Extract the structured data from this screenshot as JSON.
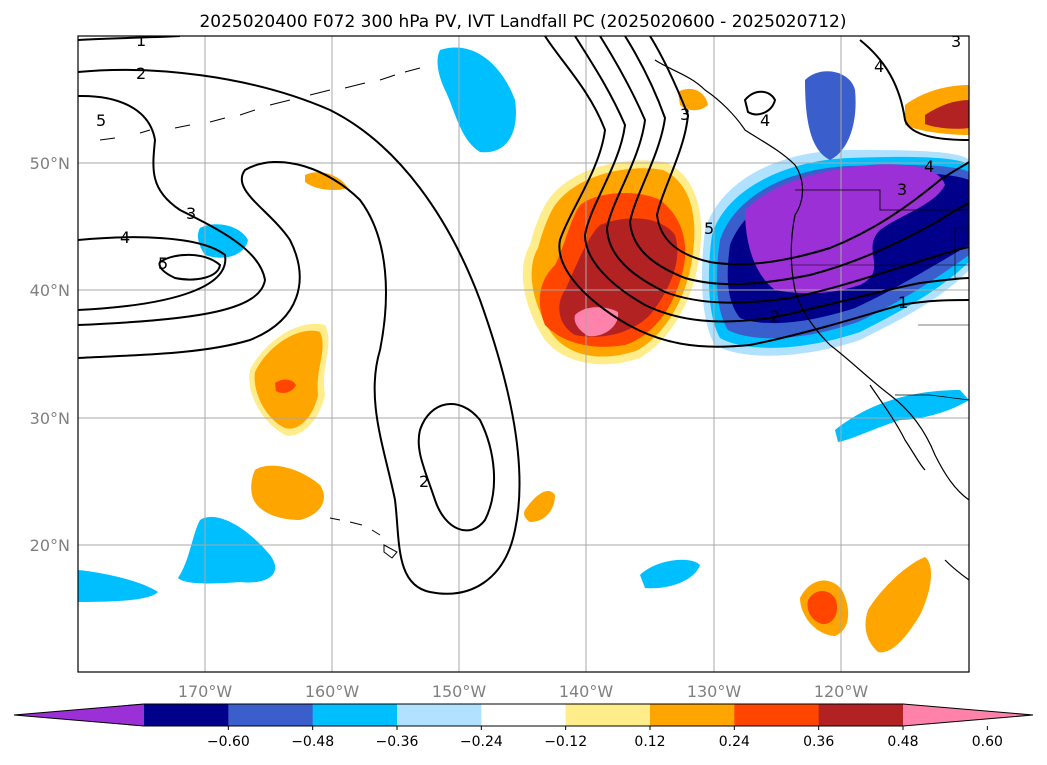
{
  "title": "2025020400 F072 300 hPa PV, IVT Landfall PC (2025020600 - 2025020712)",
  "map": {
    "lon_range": [
      -180,
      -110
    ],
    "lat_range": [
      10,
      60
    ],
    "lat_ticks": [
      {
        "value": 20,
        "label": "20°N"
      },
      {
        "value": 30,
        "label": "30°N"
      },
      {
        "value": 40,
        "label": "40°N"
      },
      {
        "value": 50,
        "label": "50°N"
      }
    ],
    "lon_ticks": [
      {
        "value": -170,
        "label": "170°W"
      },
      {
        "value": -160,
        "label": "160°W"
      },
      {
        "value": -150,
        "label": "150°W"
      },
      {
        "value": -140,
        "label": "140°W"
      },
      {
        "value": -130,
        "label": "130°W"
      },
      {
        "value": -120,
        "label": "120°W"
      }
    ],
    "grid": true,
    "contour_labels": [
      "1",
      "2",
      "3",
      "4",
      "5",
      "5",
      "4",
      "3",
      "2",
      "1",
      "2",
      "3",
      "4",
      "5",
      "4",
      "3"
    ]
  },
  "colorbar": {
    "ticks": [
      "−0.60",
      "−0.48",
      "−0.36",
      "−0.24",
      "−0.12",
      "0.12",
      "0.24",
      "0.36",
      "0.48",
      "0.60"
    ],
    "colors": [
      "#9b30d6",
      "#00008b",
      "#3a5fcd",
      "#00bfff",
      "#b0e2ff",
      "#ffffff",
      "#ffec8b",
      "#ffa500",
      "#ff4500",
      "#b22222",
      "#ff82ab"
    ],
    "extend": "both"
  }
}
